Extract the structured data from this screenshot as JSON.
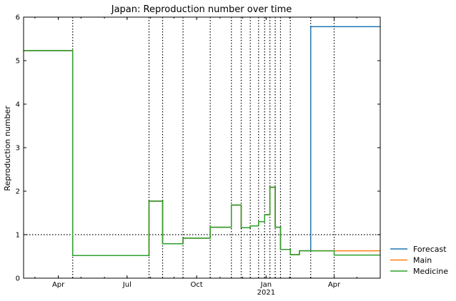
{
  "chart_data": {
    "type": "line",
    "title": "Japan: Reproduction number over time",
    "xlabel": "",
    "ylabel": "Reproduction number",
    "x_range": [
      "2020-02-15",
      "2021-06-01"
    ],
    "ylim": [
      0,
      6
    ],
    "y_ticks": [
      "0",
      "1",
      "2",
      "3",
      "4",
      "5",
      "6"
    ],
    "x_ticks": [
      {
        "date": "2020-04-01",
        "label": "Apr",
        "sublabel": ""
      },
      {
        "date": "2020-07-01",
        "label": "Jul",
        "sublabel": ""
      },
      {
        "date": "2020-10-01",
        "label": "Oct",
        "sublabel": ""
      },
      {
        "date": "2021-01-01",
        "label": "Jan",
        "sublabel": "2021"
      },
      {
        "date": "2021-04-01",
        "label": "Apr",
        "sublabel": ""
      }
    ],
    "reference_line_y": 1,
    "change_dates": [
      "2020-04-20",
      "2020-07-30",
      "2020-08-17",
      "2020-09-13",
      "2020-10-19",
      "2020-11-16",
      "2020-11-29",
      "2020-12-11",
      "2020-12-22",
      "2020-12-30",
      "2021-01-06",
      "2021-01-13",
      "2021-01-20",
      "2021-02-02",
      "2021-03-01",
      "2021-04-01"
    ],
    "series": [
      {
        "name": "Forecast",
        "color": "#1f77b4",
        "points": [
          [
            "2020-02-15",
            5.23
          ],
          [
            "2020-04-20",
            0.52
          ],
          [
            "2020-07-30",
            1.77
          ],
          [
            "2020-08-17",
            0.79
          ],
          [
            "2020-09-13",
            0.92
          ],
          [
            "2020-10-19",
            1.17
          ],
          [
            "2020-11-16",
            1.68
          ],
          [
            "2020-11-29",
            1.16
          ],
          [
            "2020-12-11",
            1.2
          ],
          [
            "2020-12-22",
            1.3
          ],
          [
            "2020-12-30",
            1.46
          ],
          [
            "2021-01-06",
            2.09
          ],
          [
            "2021-01-13",
            1.17
          ],
          [
            "2021-01-20",
            0.66
          ],
          [
            "2021-02-02",
            0.54
          ],
          [
            "2021-02-14",
            0.63
          ],
          [
            "2021-03-01",
            5.78
          ],
          [
            "2021-06-01",
            5.78
          ]
        ]
      },
      {
        "name": "Main",
        "color": "#ff7f0e",
        "points": [
          [
            "2020-02-15",
            5.23
          ],
          [
            "2020-04-20",
            0.52
          ],
          [
            "2020-07-30",
            1.77
          ],
          [
            "2020-08-17",
            0.79
          ],
          [
            "2020-09-13",
            0.92
          ],
          [
            "2020-10-19",
            1.17
          ],
          [
            "2020-11-16",
            1.68
          ],
          [
            "2020-11-29",
            1.16
          ],
          [
            "2020-12-11",
            1.2
          ],
          [
            "2020-12-22",
            1.3
          ],
          [
            "2020-12-30",
            1.46
          ],
          [
            "2021-01-06",
            2.09
          ],
          [
            "2021-01-13",
            1.17
          ],
          [
            "2021-01-20",
            0.66
          ],
          [
            "2021-02-02",
            0.54
          ],
          [
            "2021-02-14",
            0.63
          ],
          [
            "2021-06-01",
            0.63
          ]
        ]
      },
      {
        "name": "Medicine",
        "color": "#2ca02c",
        "points": [
          [
            "2020-02-15",
            5.23
          ],
          [
            "2020-04-20",
            0.52
          ],
          [
            "2020-07-30",
            1.77
          ],
          [
            "2020-08-17",
            0.79
          ],
          [
            "2020-09-13",
            0.92
          ],
          [
            "2020-10-19",
            1.17
          ],
          [
            "2020-11-16",
            1.68
          ],
          [
            "2020-11-29",
            1.16
          ],
          [
            "2020-12-11",
            1.2
          ],
          [
            "2020-12-22",
            1.3
          ],
          [
            "2020-12-30",
            1.46
          ],
          [
            "2021-01-06",
            2.09
          ],
          [
            "2021-01-13",
            1.17
          ],
          [
            "2021-01-20",
            0.66
          ],
          [
            "2021-02-02",
            0.54
          ],
          [
            "2021-02-14",
            0.63
          ],
          [
            "2021-04-01",
            0.53
          ],
          [
            "2021-06-01",
            0.53
          ]
        ]
      }
    ],
    "legend_position": "outside-right-bottom",
    "grid": false
  }
}
